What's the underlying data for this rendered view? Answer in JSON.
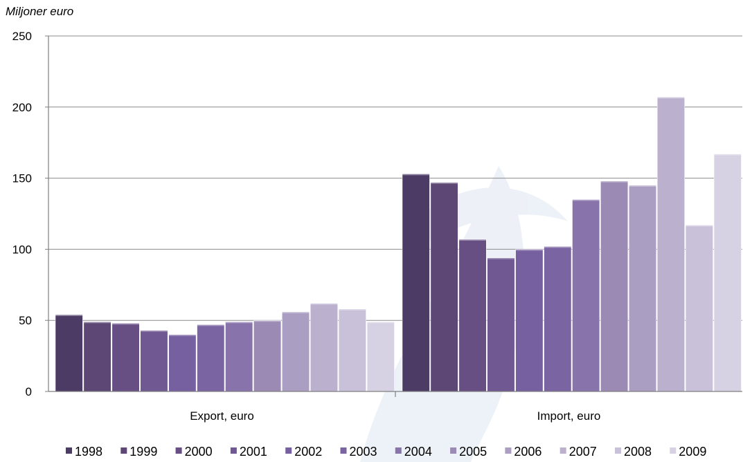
{
  "chart_data": {
    "type": "bar",
    "title": "",
    "ylabel": "Miljoner euro",
    "xlabel": "",
    "ylim": [
      0,
      250
    ],
    "yticks": [
      "0",
      "50",
      "100",
      "150",
      "200",
      "250"
    ],
    "grid": true,
    "legend_position": "bottom",
    "categories": [
      "Export, euro",
      "Import, euro"
    ],
    "series": [
      {
        "name": "1998",
        "values": [
          54,
          153
        ],
        "color": "#4b3b65"
      },
      {
        "name": "1999",
        "values": [
          49,
          147
        ],
        "color": "#5c4775"
      },
      {
        "name": "2000",
        "values": [
          48,
          107
        ],
        "color": "#674f84"
      },
      {
        "name": "2001",
        "values": [
          43,
          94
        ],
        "color": "#705893"
      },
      {
        "name": "2002",
        "values": [
          40,
          100
        ],
        "color": "#7660a0"
      },
      {
        "name": "2003",
        "values": [
          47,
          102
        ],
        "color": "#7b64a2"
      },
      {
        "name": "2004",
        "values": [
          49,
          135
        ],
        "color": "#8873ab"
      },
      {
        "name": "2005",
        "values": [
          50,
          148
        ],
        "color": "#9b8bb4"
      },
      {
        "name": "2006",
        "values": [
          56,
          145
        ],
        "color": "#aa9ec2"
      },
      {
        "name": "2007",
        "values": [
          62,
          207
        ],
        "color": "#bbb1cf"
      },
      {
        "name": "2008",
        "values": [
          58,
          117
        ],
        "color": "#c9c1da"
      },
      {
        "name": "2009",
        "values": [
          49,
          167
        ],
        "color": "#d6d1e3"
      }
    ]
  }
}
